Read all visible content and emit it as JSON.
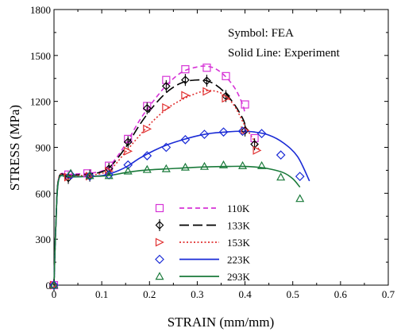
{
  "chart_data": {
    "type": "line",
    "xlabel": "STRAIN (mm/mm)",
    "ylabel": "STRESS (MPa)",
    "xlim": [
      0,
      0.7
    ],
    "ylim": [
      0,
      1800
    ],
    "xticks": [
      0,
      0.1,
      0.2,
      0.3,
      0.4,
      0.5,
      0.6,
      0.7
    ],
    "yticks": [
      0,
      300,
      600,
      900,
      1200,
      1500,
      1800
    ],
    "annotations": [
      "Symbol: FEA",
      "Solid Line: Experiment"
    ],
    "legend_position": "bottom-center",
    "series": [
      {
        "name": "110K",
        "color": "#d633d6",
        "marker": "square",
        "line_style": "dashed",
        "line": [
          [
            0,
            0
          ],
          [
            0.004,
            400
          ],
          [
            0.01,
            700
          ],
          [
            0.03,
            722
          ],
          [
            0.07,
            730
          ],
          [
            0.1,
            745
          ],
          [
            0.12,
            790
          ],
          [
            0.15,
            920
          ],
          [
            0.18,
            1080
          ],
          [
            0.21,
            1210
          ],
          [
            0.24,
            1320
          ],
          [
            0.27,
            1395
          ],
          [
            0.3,
            1425
          ],
          [
            0.32,
            1430
          ],
          [
            0.34,
            1410
          ],
          [
            0.36,
            1360
          ],
          [
            0.38,
            1280
          ],
          [
            0.395,
            1180
          ],
          [
            0.4,
            1120
          ]
        ],
        "points": [
          [
            0,
            0
          ],
          [
            0.03,
            722
          ],
          [
            0.07,
            730
          ],
          [
            0.115,
            780
          ],
          [
            0.155,
            955
          ],
          [
            0.195,
            1170
          ],
          [
            0.235,
            1340
          ],
          [
            0.275,
            1410
          ],
          [
            0.32,
            1420
          ],
          [
            0.36,
            1365
          ],
          [
            0.4,
            1180
          ],
          [
            0.42,
            960
          ]
        ]
      },
      {
        "name": "133K",
        "color": "#000000",
        "marker": "diamond-cross",
        "line_style": "long-dash",
        "line": [
          [
            0,
            0
          ],
          [
            0.004,
            400
          ],
          [
            0.01,
            700
          ],
          [
            0.03,
            715
          ],
          [
            0.07,
            725
          ],
          [
            0.1,
            740
          ],
          [
            0.12,
            780
          ],
          [
            0.15,
            900
          ],
          [
            0.18,
            1050
          ],
          [
            0.21,
            1175
          ],
          [
            0.24,
            1270
          ],
          [
            0.27,
            1325
          ],
          [
            0.3,
            1340
          ],
          [
            0.32,
            1335
          ],
          [
            0.34,
            1305
          ],
          [
            0.36,
            1250
          ],
          [
            0.38,
            1170
          ],
          [
            0.395,
            1090
          ],
          [
            0.4,
            1050
          ]
        ],
        "points": [
          [
            0,
            0
          ],
          [
            0.03,
            700
          ],
          [
            0.075,
            715
          ],
          [
            0.115,
            760
          ],
          [
            0.155,
            935
          ],
          [
            0.195,
            1155
          ],
          [
            0.235,
            1300
          ],
          [
            0.275,
            1340
          ],
          [
            0.32,
            1335
          ],
          [
            0.36,
            1235
          ],
          [
            0.4,
            1010
          ],
          [
            0.42,
            920
          ]
        ]
      },
      {
        "name": "153K",
        "color": "#e03030",
        "marker": "triangle-right",
        "line_style": "dotted",
        "line": [
          [
            0,
            0
          ],
          [
            0.004,
            400
          ],
          [
            0.01,
            700
          ],
          [
            0.03,
            712
          ],
          [
            0.07,
            718
          ],
          [
            0.1,
            730
          ],
          [
            0.12,
            760
          ],
          [
            0.15,
            870
          ],
          [
            0.18,
            980
          ],
          [
            0.21,
            1080
          ],
          [
            0.24,
            1160
          ],
          [
            0.27,
            1215
          ],
          [
            0.3,
            1255
          ],
          [
            0.32,
            1270
          ],
          [
            0.34,
            1265
          ],
          [
            0.36,
            1235
          ],
          [
            0.38,
            1160
          ],
          [
            0.4,
            1040
          ],
          [
            0.42,
            940
          ],
          [
            0.43,
            880
          ]
        ],
        "points": [
          [
            0,
            0
          ],
          [
            0.03,
            705
          ],
          [
            0.075,
            712
          ],
          [
            0.115,
            745
          ],
          [
            0.155,
            875
          ],
          [
            0.195,
            1020
          ],
          [
            0.235,
            1160
          ],
          [
            0.275,
            1240
          ],
          [
            0.32,
            1265
          ],
          [
            0.36,
            1220
          ],
          [
            0.4,
            1010
          ],
          [
            0.425,
            880
          ]
        ]
      },
      {
        "name": "223K",
        "color": "#1a2bd6",
        "marker": "diamond",
        "line_style": "solid",
        "line": [
          [
            0,
            0
          ],
          [
            0.004,
            400
          ],
          [
            0.01,
            690
          ],
          [
            0.03,
            705
          ],
          [
            0.07,
            710
          ],
          [
            0.1,
            715
          ],
          [
            0.12,
            730
          ],
          [
            0.15,
            770
          ],
          [
            0.18,
            830
          ],
          [
            0.21,
            880
          ],
          [
            0.24,
            920
          ],
          [
            0.27,
            950
          ],
          [
            0.3,
            975
          ],
          [
            0.33,
            992
          ],
          [
            0.36,
            1000
          ],
          [
            0.39,
            1005
          ],
          [
            0.42,
            1000
          ],
          [
            0.45,
            980
          ],
          [
            0.48,
            930
          ],
          [
            0.51,
            840
          ],
          [
            0.535,
            680
          ]
        ],
        "points": [
          [
            0,
            0
          ],
          [
            0.035,
            720
          ],
          [
            0.075,
            712
          ],
          [
            0.115,
            720
          ],
          [
            0.155,
            785
          ],
          [
            0.195,
            845
          ],
          [
            0.235,
            900
          ],
          [
            0.275,
            950
          ],
          [
            0.315,
            985
          ],
          [
            0.355,
            1000
          ],
          [
            0.395,
            1005
          ],
          [
            0.435,
            990
          ],
          [
            0.475,
            850
          ],
          [
            0.515,
            710
          ]
        ]
      },
      {
        "name": "293K",
        "color": "#1a7a3a",
        "marker": "triangle-up",
        "line_style": "solid",
        "line": [
          [
            0,
            0
          ],
          [
            0.004,
            400
          ],
          [
            0.01,
            690
          ],
          [
            0.03,
            705
          ],
          [
            0.07,
            710
          ],
          [
            0.1,
            712
          ],
          [
            0.12,
            718
          ],
          [
            0.15,
            735
          ],
          [
            0.18,
            748
          ],
          [
            0.21,
            755
          ],
          [
            0.24,
            760
          ],
          [
            0.27,
            765
          ],
          [
            0.3,
            770
          ],
          [
            0.33,
            773
          ],
          [
            0.36,
            775
          ],
          [
            0.39,
            776
          ],
          [
            0.42,
            772
          ],
          [
            0.45,
            760
          ],
          [
            0.48,
            735
          ],
          [
            0.5,
            695
          ],
          [
            0.515,
            640
          ]
        ],
        "points": [
          [
            0,
            0
          ],
          [
            0.035,
            730
          ],
          [
            0.075,
            715
          ],
          [
            0.115,
            715
          ],
          [
            0.155,
            745
          ],
          [
            0.195,
            755
          ],
          [
            0.235,
            760
          ],
          [
            0.275,
            770
          ],
          [
            0.315,
            775
          ],
          [
            0.355,
            785
          ],
          [
            0.395,
            780
          ],
          [
            0.435,
            780
          ],
          [
            0.475,
            705
          ],
          [
            0.515,
            565
          ]
        ]
      }
    ]
  }
}
